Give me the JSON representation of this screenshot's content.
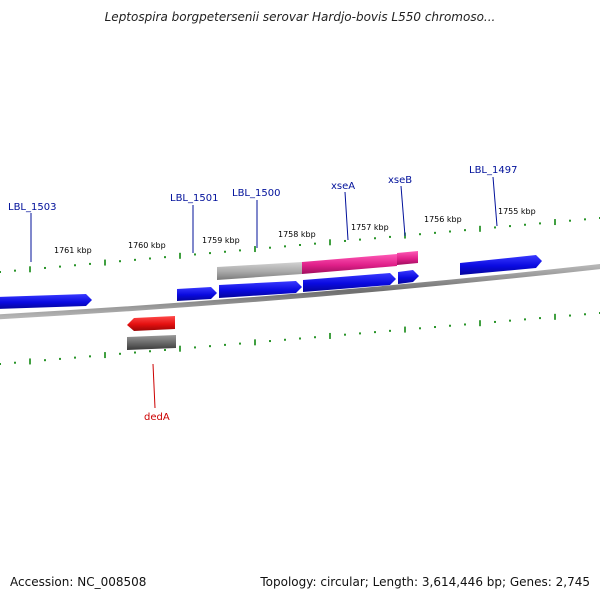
{
  "title": "Leptospira borgpetersenii serovar Hardjo-bovis L550 chromoso...",
  "footer": {
    "accession_label": "Accession:",
    "accession": "NC_008508",
    "topology_line": "Topology: circular; Length: 3,614,446 bp; Genes: 2,745"
  },
  "ruler_labels": [
    "1761 kbp",
    "1760 kbp",
    "1759 kbp",
    "1758 kbp",
    "1757 kbp",
    "1756 kbp",
    "1755 kbp"
  ],
  "gene_labels": {
    "lbl_1503": "LBL_1503",
    "lbl_1501": "LBL_1501",
    "lbl_1500": "LBL_1500",
    "xsea": "xseA",
    "xseb": "xseB",
    "lbl_1497": "LBL_1497",
    "deda": "dedA"
  },
  "colors": {
    "gene_blue": "#1010e0",
    "gene_pink": "#e0208a",
    "gene_red": "#e41010",
    "gene_grey": "#aaaaaa",
    "gene_dark_grey": "#666666",
    "tick_green": "#118811",
    "label_blue": "#00109a",
    "label_red": "#cc0000",
    "backbone": "#888888"
  }
}
